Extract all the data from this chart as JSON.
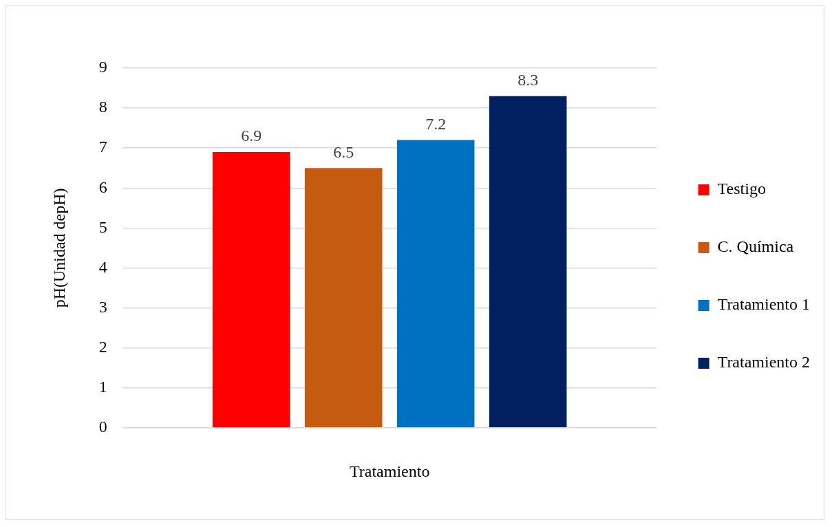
{
  "chart_data": {
    "type": "bar",
    "categories": [
      null
    ],
    "xlabel": "Tratamiento",
    "ylabel": "pH(Unidad depH)",
    "series": [
      {
        "name": "Testigo",
        "color": "#ff0000",
        "values": [
          6.9
        ]
      },
      {
        "name": "C. Química",
        "color": "#c55a11",
        "values": [
          6.5
        ]
      },
      {
        "name": "Tratamiento 1",
        "color": "#0070c0",
        "values": [
          7.2
        ]
      },
      {
        "name": "Tratamiento 2",
        "color": "#002060",
        "values": [
          8.3
        ]
      }
    ],
    "ylim": [
      0,
      9
    ],
    "yticks": [
      0,
      1,
      2,
      3,
      4,
      5,
      6,
      7,
      8,
      9
    ],
    "grid": "y",
    "legend": "right",
    "data_labels": true
  }
}
